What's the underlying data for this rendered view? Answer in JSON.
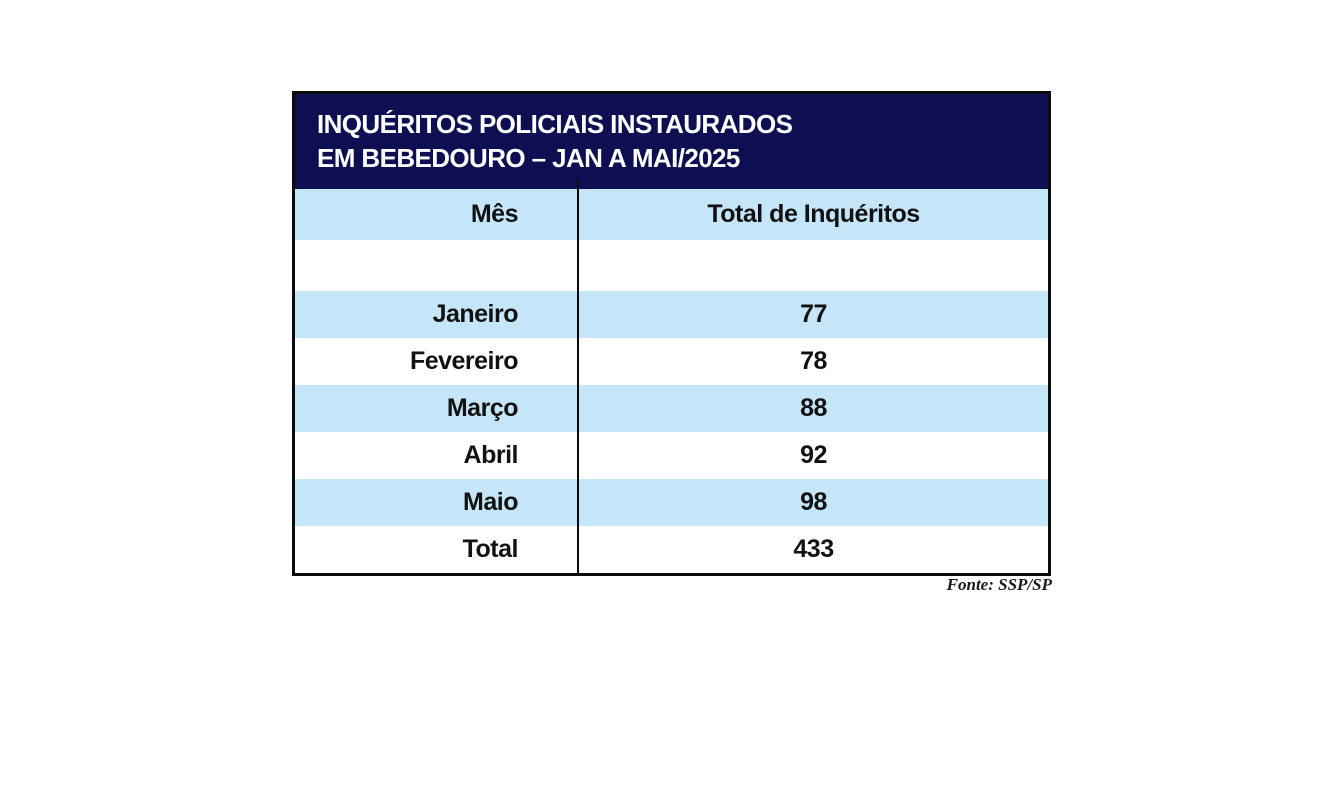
{
  "chart_data": {
    "type": "table",
    "title": "INQUÉRITOS POLICIAIS INSTAURADOS EM BEBEDOURO – JAN A MAI/2025",
    "title_lines": [
      "INQUÉRITOS POLICIAIS INSTAURADOS",
      "EM BEBEDOURO – JAN A MAI/2025"
    ],
    "columns": [
      "Mês",
      "Total de Inquéritos"
    ],
    "rows": [
      {
        "month": "Janeiro",
        "total": "77"
      },
      {
        "month": "Fevereiro",
        "total": "78"
      },
      {
        "month": "Março",
        "total": "88"
      },
      {
        "month": "Abril",
        "total": "92"
      },
      {
        "month": "Maio",
        "total": "98"
      },
      {
        "month": "Total",
        "total": "433"
      }
    ],
    "colors": {
      "header_band": "#0d0f52",
      "stripe": "#c5e6f8",
      "border": "#0b0b0b"
    }
  },
  "source": "Fonte: SSP/SP"
}
